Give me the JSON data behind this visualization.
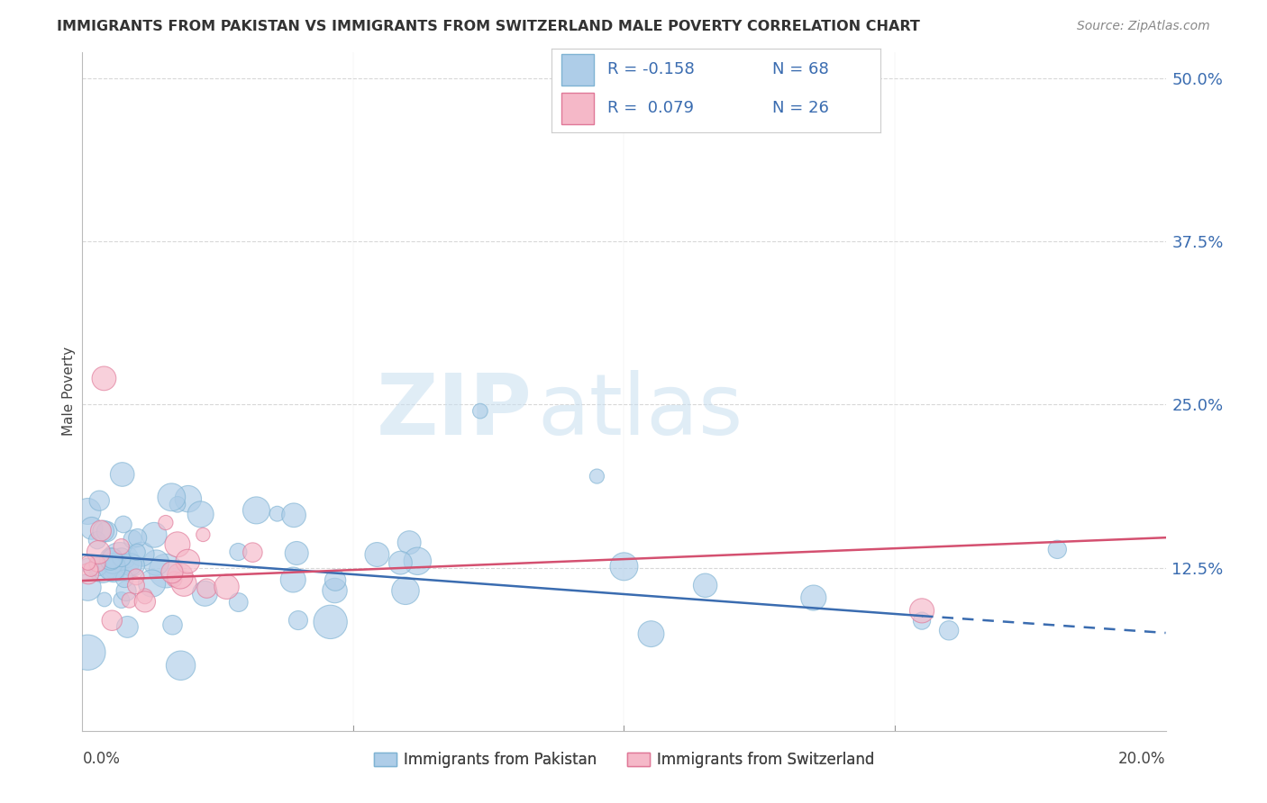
{
  "title": "IMMIGRANTS FROM PAKISTAN VS IMMIGRANTS FROM SWITZERLAND MALE POVERTY CORRELATION CHART",
  "source": "Source: ZipAtlas.com",
  "ylabel": "Male Poverty",
  "xlim": [
    0.0,
    0.2
  ],
  "ylim": [
    0.0,
    0.52
  ],
  "color_pakistan": "#aecde8",
  "color_pakistan_edge": "#7fb3d3",
  "color_switzerland": "#f5b8c8",
  "color_switzerland_edge": "#e07898",
  "color_line_pakistan": "#3a6cb0",
  "color_line_switzerland": "#d45070",
  "watermark_zip": "ZIP",
  "watermark_atlas": "atlas",
  "legend_text_color": "#3a6cb0",
  "ytick_vals": [
    0.125,
    0.25,
    0.375,
    0.5
  ],
  "ytick_labels": [
    "12.5%",
    "25.0%",
    "37.5%",
    "50.0%"
  ]
}
